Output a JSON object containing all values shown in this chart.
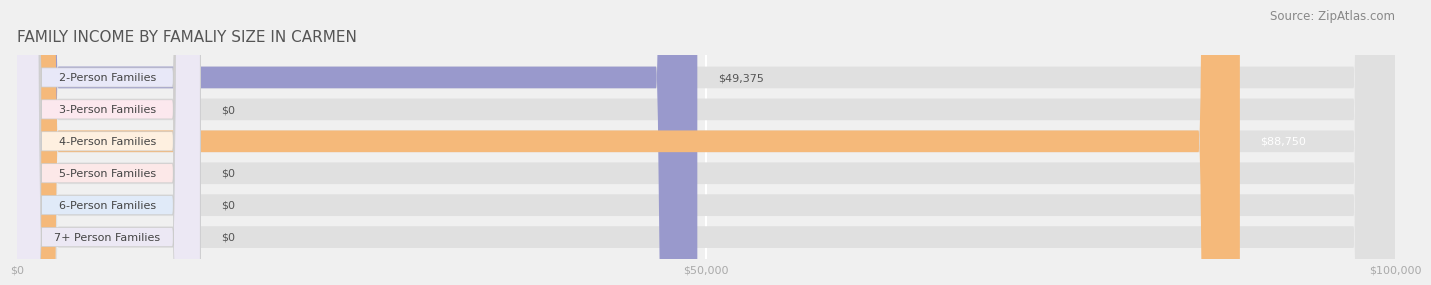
{
  "title": "FAMILY INCOME BY FAMALIY SIZE IN CARMEN",
  "source": "Source: ZipAtlas.com",
  "categories": [
    "2-Person Families",
    "3-Person Families",
    "4-Person Families",
    "5-Person Families",
    "6-Person Families",
    "7+ Person Families"
  ],
  "values": [
    49375,
    0,
    88750,
    0,
    0,
    0
  ],
  "bar_colors": [
    "#9999cc",
    "#f4a0b0",
    "#f5b97a",
    "#f4a0a0",
    "#aabfdd",
    "#c8b8d8"
  ],
  "label_bg_colors": [
    "#e8e8f8",
    "#fce8ee",
    "#fef0e0",
    "#fce8e8",
    "#e0eaf8",
    "#ece8f4"
  ],
  "value_labels": [
    "$49,375",
    "$0",
    "$88,750",
    "$0",
    "$0",
    "$0"
  ],
  "xlim": [
    0,
    100000
  ],
  "xticks": [
    0,
    50000,
    100000
  ],
  "xtick_labels": [
    "$0",
    "$50,000",
    "$100,000"
  ],
  "background_color": "#f0f0f0",
  "bar_bg_color": "#e0e0e0",
  "title_fontsize": 11,
  "source_fontsize": 8.5,
  "label_fontsize": 8,
  "value_fontsize": 8
}
